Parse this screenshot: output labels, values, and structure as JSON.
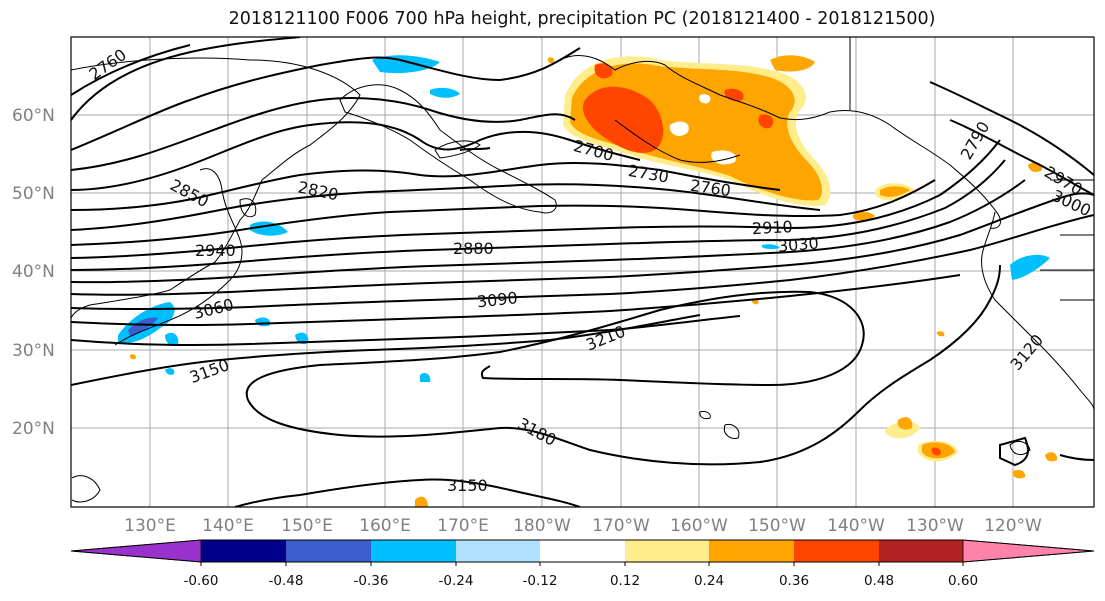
{
  "title": "2018121100 F006 700 hPa height, precipitation PC (2018121400 - 2018121500)",
  "lat_labels": [
    "60°N",
    "50°N",
    "40°N",
    "30°N",
    "20°N"
  ],
  "lon_labels": [
    "130°E",
    "140°E",
    "150°E",
    "160°E",
    "170°E",
    "180°W",
    "170°W",
    "160°W",
    "150°W",
    "140°W",
    "130°W",
    "120°W"
  ],
  "contour_labels": [
    "2760",
    "2850",
    "2820",
    "2940",
    "3060",
    "3150",
    "2880",
    "3090",
    "3210",
    "2700",
    "2730",
    "2760",
    "2910",
    "3030",
    "2790",
    "2970",
    "3000",
    "3120",
    "3180",
    "3150"
  ],
  "colorbar": {
    "ticks": [
      "-0.60",
      "-0.48",
      "-0.36",
      "-0.24",
      "-0.12",
      "0.12",
      "0.24",
      "0.36",
      "0.48",
      "0.60"
    ],
    "colors": [
      "#9932cc",
      "#00008b",
      "#3a5fcd",
      "#00bfff",
      "#b0e2ff",
      "#ffffff",
      "#ffec8b",
      "#ffa500",
      "#ff4500",
      "#b22222",
      "#ff82ab"
    ]
  },
  "colors": {
    "land_outline": "#000000",
    "grid": "#a9a9a9",
    "neg_precip": "#00bfff",
    "pos_precip_light": "#ffec8b",
    "pos_precip_mid": "#ffa500",
    "pos_precip_high": "#ff4500"
  }
}
